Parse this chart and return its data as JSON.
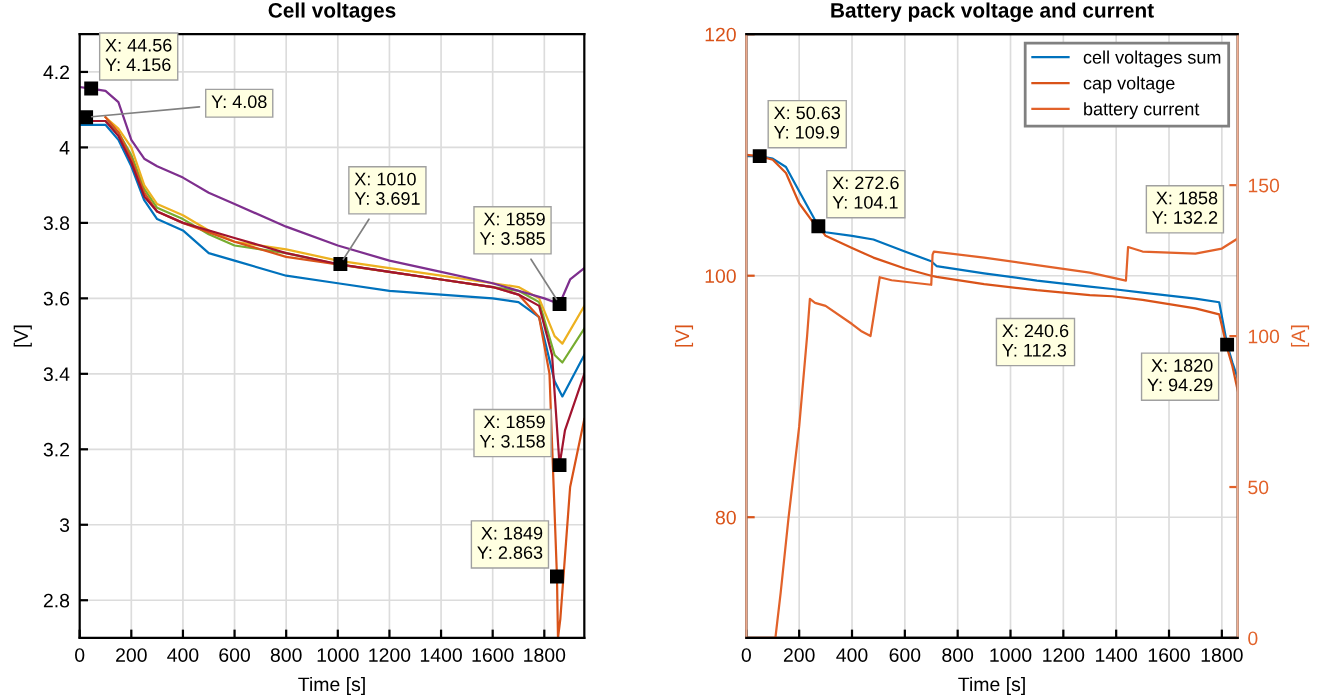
{
  "chart_data": [
    {
      "type": "line",
      "title": "Cell voltages",
      "xlabel": "Time [s]",
      "ylabel": "[V]",
      "xlim": [
        0,
        1955
      ],
      "xticks": [
        0,
        200,
        400,
        600,
        800,
        1000,
        1200,
        1400,
        1600,
        1800
      ],
      "ylim": [
        2.7,
        4.3
      ],
      "yticks": [
        2.8,
        3,
        3.2,
        3.4,
        3.6,
        3.8,
        4,
        4.2
      ],
      "grid": true,
      "series": [
        {
          "color": "#0072bd",
          "x": [
            0,
            100,
            150,
            200,
            250,
            300,
            400,
            500,
            600,
            800,
            1000,
            1200,
            1400,
            1600,
            1700,
            1780,
            1840,
            1870,
            1955
          ],
          "values": [
            4.06,
            4.06,
            4.02,
            3.95,
            3.86,
            3.81,
            3.78,
            3.72,
            3.7,
            3.66,
            3.64,
            3.62,
            3.61,
            3.6,
            3.59,
            3.55,
            3.38,
            3.34,
            3.45
          ]
        },
        {
          "color": "#77ac30",
          "x": [
            0,
            100,
            150,
            200,
            250,
            300,
            400,
            500,
            600,
            800,
            1000,
            1200,
            1400,
            1600,
            1700,
            1780,
            1840,
            1870,
            1955
          ],
          "values": [
            4.07,
            4.07,
            4.04,
            3.98,
            3.89,
            3.84,
            3.81,
            3.77,
            3.74,
            3.72,
            3.69,
            3.67,
            3.65,
            3.63,
            3.62,
            3.59,
            3.45,
            3.43,
            3.52
          ]
        },
        {
          "color": "#edb120",
          "x": [
            100,
            150,
            200,
            250,
            300,
            400,
            500,
            600,
            800,
            1000,
            1200,
            1400,
            1600,
            1700,
            1780,
            1840,
            1870,
            1955
          ],
          "values": [
            4.08,
            4.05,
            4.0,
            3.9,
            3.85,
            3.82,
            3.78,
            3.75,
            3.73,
            3.7,
            3.68,
            3.66,
            3.64,
            3.63,
            3.6,
            3.5,
            3.48,
            3.58
          ]
        },
        {
          "color": "#7e2f8e",
          "x": [
            0,
            44.56,
            100,
            150,
            200,
            250,
            300,
            400,
            500,
            600,
            800,
            1000,
            1200,
            1400,
            1600,
            1700,
            1800,
            1859,
            1900,
            1955
          ],
          "values": [
            4.16,
            4.156,
            4.15,
            4.12,
            4.02,
            3.97,
            3.95,
            3.92,
            3.88,
            3.85,
            3.79,
            3.74,
            3.7,
            3.67,
            3.64,
            3.62,
            3.6,
            3.585,
            3.65,
            3.68
          ]
        },
        {
          "color": "#d95319",
          "x": [
            100,
            150,
            200,
            250,
            300,
            400,
            600,
            800,
            1000,
            1200,
            1400,
            1600,
            1700,
            1780,
            1820,
            1849,
            1853,
            1862,
            1900,
            1955
          ],
          "values": [
            4.08,
            4.04,
            3.97,
            3.88,
            3.83,
            3.8,
            3.75,
            3.71,
            3.69,
            3.67,
            3.65,
            3.63,
            3.61,
            3.55,
            3.4,
            2.863,
            2.7,
            2.75,
            3.1,
            3.28
          ]
        },
        {
          "color": "#a2142f",
          "x": [
            0,
            100,
            150,
            200,
            250,
            300,
            400,
            600,
            800,
            1000,
            1200,
            1400,
            1600,
            1700,
            1780,
            1830,
            1859,
            1880,
            1955
          ],
          "values": [
            4.07,
            4.07,
            4.03,
            3.96,
            3.87,
            3.83,
            3.8,
            3.76,
            3.72,
            3.691,
            3.67,
            3.65,
            3.63,
            3.61,
            3.58,
            3.45,
            3.158,
            3.25,
            3.4
          ]
        }
      ],
      "annotations": [
        {
          "text": "X: 44.56\nY: 4.156",
          "x": 44.56,
          "y": 4.156
        },
        {
          "text": "Y: 4.08",
          "x": 25,
          "y": 4.08
        },
        {
          "text": "X: 1010\nY: 3.691",
          "x": 1010,
          "y": 3.691
        },
        {
          "text": "X: 1859\nY: 3.585",
          "x": 1859,
          "y": 3.585
        },
        {
          "text": "X: 1859\nY: 3.158",
          "x": 1859,
          "y": 3.158
        },
        {
          "text": "X: 1849\nY: 2.863",
          "x": 1849,
          "y": 2.863
        }
      ]
    },
    {
      "type": "line",
      "title": "Battery pack voltage and current",
      "xlabel": "Time [s]",
      "ylabel": "[V]",
      "y2label": "[A]",
      "xlim": [
        0,
        1860
      ],
      "xticks": [
        0,
        200,
        400,
        600,
        800,
        1000,
        1200,
        1400,
        1600,
        1800
      ],
      "ylim": [
        70,
        120
      ],
      "yticks": [
        80,
        100,
        120
      ],
      "y2lim": [
        0,
        200
      ],
      "y2ticks": [
        0,
        50,
        100,
        150
      ],
      "grid": true,
      "legend": "top right",
      "series": [
        {
          "name": "cell voltages sum",
          "color": "#0072bd",
          "x": [
            0,
            50.63,
            100,
            150,
            200,
            250,
            272.6,
            300,
            400,
            481,
            600,
            700,
            720,
            900,
            1100,
            1300,
            1385,
            1500,
            1700,
            1790,
            1820,
            1840,
            1860
          ],
          "values": [
            109.9,
            109.9,
            109.7,
            109,
            107,
            105,
            104.1,
            103.6,
            103.3,
            103,
            102,
            101.2,
            100.8,
            100.2,
            99.6,
            99.1,
            98.9,
            98.6,
            98.1,
            97.8,
            94.3,
            92.8,
            91.5
          ]
        },
        {
          "name": "cap voltage",
          "color": "#d95319",
          "x": [
            0,
            50.63,
            100,
            150,
            200,
            250,
            272.6,
            300,
            400,
            481,
            600,
            700,
            720,
            900,
            1100,
            1300,
            1385,
            1500,
            1700,
            1790,
            1820,
            1840,
            1860
          ],
          "values": [
            110,
            109.9,
            109.6,
            108.5,
            106,
            104.5,
            104.1,
            103.3,
            102.3,
            101.5,
            100.6,
            100,
            99.9,
            99.3,
            98.8,
            98.4,
            98.3,
            98,
            97.3,
            96.8,
            94,
            92.5,
            90.5
          ]
        },
        {
          "name": "battery current",
          "color": "#e2622a",
          "axis": "y2",
          "x": [
            0,
            110,
            130,
            160,
            200,
            230,
            240.6,
            260,
            300,
            400,
            434,
            470,
            481,
            505,
            550,
            700,
            705,
            710,
            900,
            1100,
            1300,
            1437,
            1445,
            1500,
            1700,
            1800,
            1858
          ],
          "values": [
            0,
            0,
            15,
            40,
            70,
            100,
            112.3,
            111,
            110,
            104,
            101.7,
            100,
            106,
            119.5,
            118.5,
            117,
            127,
            128,
            126,
            123.5,
            121,
            118.4,
            129.5,
            128,
            127.3,
            129,
            132.2
          ]
        }
      ],
      "annotations": [
        {
          "text": "X: 50.63\nY: 109.9",
          "x": 50.63,
          "y": 109.9
        },
        {
          "text": "X: 272.6\nY: 104.1",
          "x": 272.6,
          "y": 104.1
        },
        "X: 240.6\nY: 112.3",
        "X: 1858\nY: 132.2",
        {
          "text": "X: 1820\nY: 94.29",
          "x": 1820,
          "y": 94.29
        }
      ]
    }
  ]
}
